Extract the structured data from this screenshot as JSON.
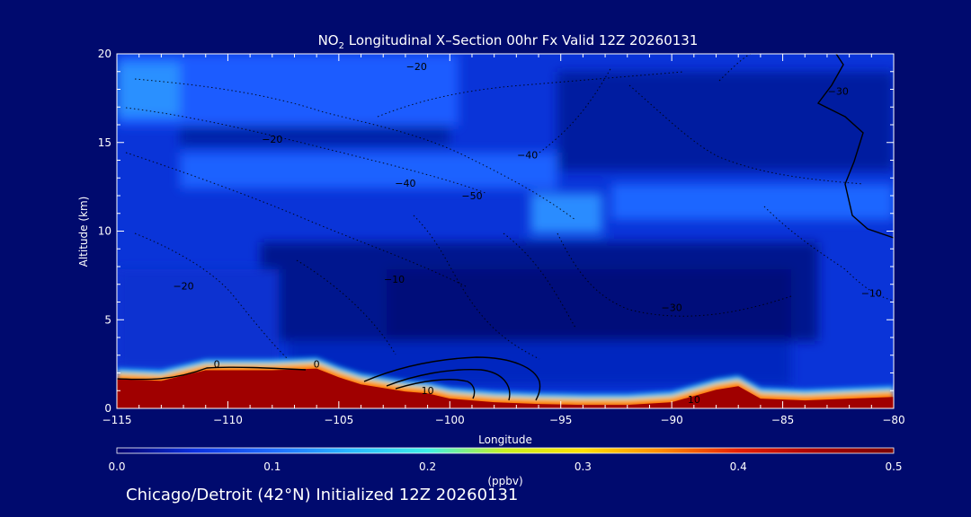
{
  "chart_data": {
    "type": "heatmap",
    "title": {
      "prefix": "NO",
      "subscript": "2",
      "rest": " Longitudinal X–Section 00hr  Fx Valid 12Z 20260131"
    },
    "xlabel": "Longitude",
    "ylabel": "Altitude (km)",
    "xlim": [
      -115,
      -80
    ],
    "ylim": [
      0,
      20
    ],
    "x_ticks": [
      -115,
      -110,
      -105,
      -100,
      -95,
      -90,
      -85,
      -80
    ],
    "x_tick_labels": [
      "−115",
      "−110",
      "−105",
      "−100",
      "−95",
      "−90",
      "−85",
      "−80"
    ],
    "y_ticks": [
      0,
      5,
      10,
      15,
      20
    ],
    "y_tick_labels": [
      "0",
      "5",
      "10",
      "15",
      "20"
    ],
    "colorbar": {
      "label": "(ppbv)",
      "range": [
        0.0,
        0.5
      ],
      "ticks": [
        0.0,
        0.1,
        0.2,
        0.3,
        0.4,
        0.5
      ],
      "tick_labels": [
        "0.0",
        "0.1",
        "0.2",
        "0.3",
        "0.4",
        "0.5"
      ],
      "colors": [
        "#00006e",
        "#0a2fe0",
        "#1e6cff",
        "#28b8ff",
        "#3cf0e6",
        "#c8f020",
        "#ffe000",
        "#ff8c00",
        "#e81e00",
        "#a80000",
        "#7a0000"
      ]
    },
    "terrain_km": {
      "lon": [
        -115,
        -113,
        -111,
        -110,
        -108,
        -106,
        -105,
        -104,
        -102,
        -101,
        -100,
        -98,
        -96,
        -94,
        -92,
        -90,
        -88,
        -87,
        -86,
        -84,
        -82,
        -80
      ],
      "alt": [
        1.7,
        1.6,
        2.2,
        2.2,
        2.2,
        2.3,
        1.8,
        1.4,
        1.0,
        0.9,
        0.6,
        0.4,
        0.3,
        0.25,
        0.25,
        0.4,
        1.1,
        1.3,
        0.6,
        0.5,
        0.6,
        0.7
      ]
    },
    "temperature_contour_labels_degC": [
      {
        "text": "−20",
        "lon": -101.5,
        "alt": 19.1
      },
      {
        "text": "−20",
        "lon": -108.0,
        "alt": 15.0
      },
      {
        "text": "−30",
        "lon": -82.5,
        "alt": 17.7
      },
      {
        "text": "−40",
        "lon": -96.5,
        "alt": 14.1
      },
      {
        "text": "−40",
        "lon": -102.0,
        "alt": 12.5
      },
      {
        "text": "−50",
        "lon": -99.0,
        "alt": 11.8
      },
      {
        "text": "−10",
        "lon": -102.5,
        "alt": 7.1
      },
      {
        "text": "−20",
        "lon": -112.0,
        "alt": 6.7
      },
      {
        "text": "−30",
        "lon": -90.0,
        "alt": 5.5
      },
      {
        "text": "−10",
        "lon": -81.0,
        "alt": 6.3
      },
      {
        "text": "0",
        "lon": -110.5,
        "alt": 2.3
      },
      {
        "text": "0",
        "lon": -106.0,
        "alt": 2.3
      },
      {
        "text": "10",
        "lon": -101.0,
        "alt": 0.8
      },
      {
        "text": "10",
        "lon": -89.0,
        "alt": 0.3
      }
    ]
  },
  "footer_text": "Chicago/Detroit (42°N) Initialized 12Z 20260131"
}
